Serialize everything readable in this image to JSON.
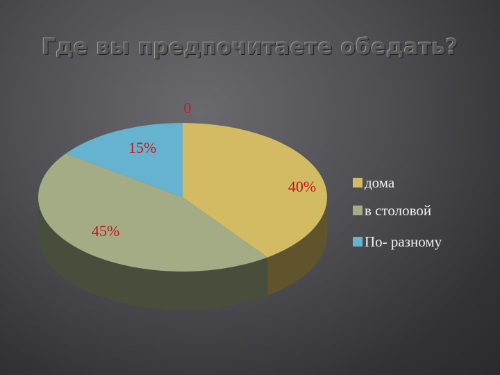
{
  "slide": {
    "title": "Где вы предпочитаете обедать?"
  },
  "chart_data": {
    "type": "pie",
    "style": "3d",
    "categories": [
      "дома",
      "в столовой",
      "По- разному"
    ],
    "values": [
      40,
      45,
      15
    ],
    "data_labels": [
      "40%",
      "45%",
      "15%"
    ],
    "extra_label": "0",
    "colors": {
      "дома": "#d2bb62",
      "в столовой": "#a3ac85",
      "По- разному": "#66b3cf",
      "label_text": "#c8141e"
    },
    "legend_position": "right"
  }
}
